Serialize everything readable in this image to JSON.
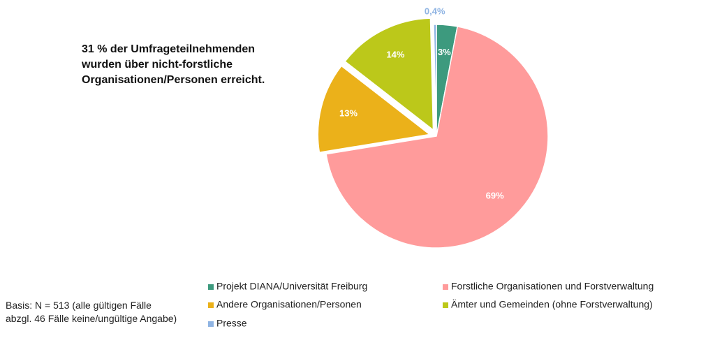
{
  "chart_data": {
    "type": "pie",
    "title": "31 % der Umfrageteilnehmenden wurden über nicht-forstliche Organisationen/Personen erreicht.",
    "note": "Basis: N = 513 (alle gültigen Fälle abzgl. 46 Fälle keine/ungültige Angabe)",
    "series": [
      {
        "name": "Projekt DIANA/Universität Freiburg",
        "color": "#3d9a7e",
        "values": [
          3
        ],
        "value_labels": [
          "3%"
        ]
      },
      {
        "name": "Forstliche Organisationen und Forstverwaltung",
        "color": "#ff9b9b",
        "values": [
          69
        ],
        "value_labels": [
          "69%"
        ]
      },
      {
        "name": "Andere Organisationen/Personen",
        "color": "#ebb11a",
        "values": [
          13
        ],
        "value_labels": [
          "13%"
        ]
      },
      {
        "name": "Ämter und Gemeinden (ohne Forstverwaltung)",
        "color": "#bcc81a",
        "values": [
          14
        ],
        "value_labels": [
          "14%"
        ]
      },
      {
        "name": "Presse",
        "color": "#8fb4e3",
        "values": [
          0.4
        ],
        "value_labels": [
          "0,4%"
        ]
      }
    ],
    "legend": "bottom"
  }
}
